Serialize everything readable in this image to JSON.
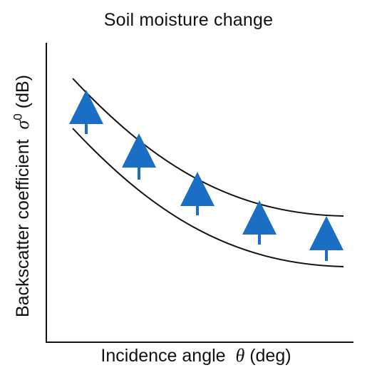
{
  "title": "Soil moisture change",
  "xlabel": {
    "text": "Incidence angle",
    "symbol": "θ",
    "unit": "(deg)"
  },
  "ylabel": {
    "text": "Backscatter coefficient",
    "symbol": "σ",
    "superscript": "0",
    "unit": "(dB)"
  },
  "colors": {
    "curve": "#111111",
    "arrow": "#1a6fc4",
    "axis": "#111111"
  },
  "arrow_count": 5,
  "arrow_direction": "up"
}
